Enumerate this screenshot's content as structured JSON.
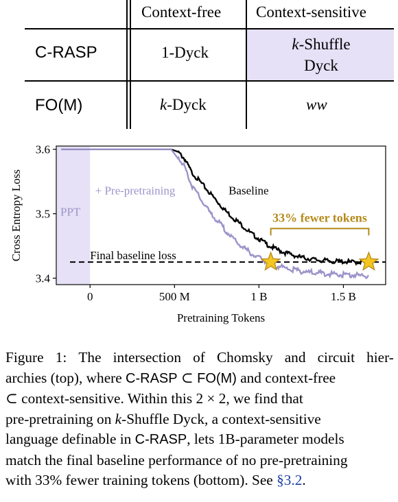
{
  "table": {
    "col_headers": [
      "Context-free",
      "Context-sensitive"
    ],
    "rows": [
      {
        "label": "C-RASP",
        "free": "1-Dyck",
        "sensitive_1": "k-Shuffle",
        "sensitive_2": "Dyck"
      },
      {
        "label": "FO(M)",
        "free_k": "k",
        "free_rest": "-Dyck",
        "sensitive": "ww"
      }
    ],
    "highlight_color": "#e6e1f6"
  },
  "chart_data": {
    "type": "line",
    "xlabel": "Pretraining Tokens",
    "ylabel": "Cross Entropy Loss",
    "x_unit": "tokens (billions)",
    "xlim": [
      -0.2,
      1.75
    ],
    "ylim": [
      3.39,
      3.605
    ],
    "x_ticks": [
      {
        "value": 0,
        "label": "0"
      },
      {
        "value": 0.5,
        "label": "500 M"
      },
      {
        "value": 1.0,
        "label": "1 B"
      },
      {
        "value": 1.5,
        "label": "1.5 B"
      }
    ],
    "y_ticks": [
      {
        "value": 3.4,
        "label": "3.4"
      },
      {
        "value": 3.5,
        "label": "3.5"
      },
      {
        "value": 3.6,
        "label": "3.6"
      }
    ],
    "series": [
      {
        "name": "Baseline",
        "color": "#000000",
        "x": [
          -0.17,
          0.48,
          0.52,
          0.56,
          0.6,
          0.65,
          0.7,
          0.75,
          0.8,
          0.85,
          0.9,
          0.95,
          1.0,
          1.05,
          1.1,
          1.15,
          1.2,
          1.25,
          1.3,
          1.35,
          1.4,
          1.45,
          1.5,
          1.55,
          1.6,
          1.65
        ],
        "y": [
          3.6,
          3.6,
          3.596,
          3.585,
          3.565,
          3.55,
          3.535,
          3.52,
          3.505,
          3.493,
          3.482,
          3.47,
          3.461,
          3.452,
          3.445,
          3.44,
          3.436,
          3.432,
          3.43,
          3.428,
          3.427,
          3.426,
          3.426,
          3.425,
          3.425,
          3.425
        ]
      },
      {
        "name": "+ Pre-pretraining",
        "color": "#9d93c9",
        "x": [
          -0.17,
          0.48,
          0.52,
          0.56,
          0.6,
          0.65,
          0.7,
          0.75,
          0.8,
          0.85,
          0.9,
          0.95,
          1.0,
          1.05,
          1.1,
          1.15,
          1.2,
          1.25,
          1.3,
          1.35,
          1.4,
          1.45,
          1.5,
          1.55,
          1.6,
          1.65
        ],
        "y": [
          3.6,
          3.6,
          3.59,
          3.573,
          3.545,
          3.525,
          3.505,
          3.49,
          3.475,
          3.46,
          3.449,
          3.439,
          3.431,
          3.425,
          3.42,
          3.416,
          3.413,
          3.411,
          3.409,
          3.408,
          3.407,
          3.406,
          3.405,
          3.405,
          3.404,
          3.404
        ]
      }
    ],
    "reference_line": {
      "y": 3.425,
      "label": "Final baseline loss"
    },
    "ppt_region": {
      "x_start": -0.17,
      "x_end": 0.0,
      "label": "PPT",
      "color": "#e6e1f6"
    },
    "stars": [
      {
        "x": 1.07,
        "y": 3.425
      },
      {
        "x": 1.65,
        "y": 3.425
      }
    ],
    "annotation": {
      "text": "33% fewer tokens",
      "color": "#b48a1a",
      "x_start": 1.07,
      "x_end": 1.65
    },
    "series_labels": [
      "Baseline",
      "+ Pre-pretraining"
    ]
  },
  "caption": {
    "l1": [
      "Figure",
      "1:",
      "The",
      "intersection",
      "of",
      "Chomsky",
      "and",
      "circuit",
      "hier-"
    ],
    "l2a": "archies (top), where ",
    "l2b": "C-RASP",
    "l2c": " ⊂ ",
    "l2d": "FO(M)",
    "l2e": " and context-free",
    "l3": "⊂ context-sensitive.  Within this 2 × 2, we find that",
    "l4a": "pre-pretraining on ",
    "l4b": "k",
    "l4c": "-Shuffle Dyck, a context-sensitive",
    "l5a": "language definable in ",
    "l5b": "C-RASP",
    "l5c": ", lets 1B-parameter models",
    "l6": "match the final baseline performance of no pre-pretraining",
    "l7a": "with 33% fewer training tokens (bottom). See ",
    "l7b": "§3.2",
    "l7c": "."
  }
}
